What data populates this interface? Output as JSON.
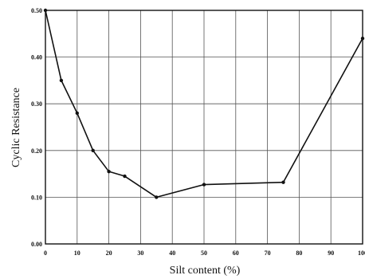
{
  "chart_data": {
    "type": "line",
    "title": "",
    "xlabel": "Silt content (%)",
    "ylabel": "Cyclic Resistance",
    "xlim": [
      0,
      100
    ],
    "ylim": [
      0.0,
      0.5
    ],
    "x_ticks": [
      "0",
      "10",
      "20",
      "30",
      "40",
      "50",
      "60",
      "70",
      "80",
      "90",
      "100"
    ],
    "y_ticks": [
      "0.00",
      "0.10",
      "0.20",
      "0.30",
      "0.40",
      "0.50"
    ],
    "grid": true,
    "series": [
      {
        "x": [
          0,
          5,
          10,
          15,
          20,
          25,
          35,
          50,
          75,
          100
        ],
        "y": [
          0.5,
          0.35,
          0.28,
          0.2,
          0.155,
          0.145,
          0.1,
          0.127,
          0.132,
          0.44
        ]
      }
    ],
    "colors": {
      "line": "#111111",
      "grid": "#555555",
      "frame": "#111111"
    }
  }
}
